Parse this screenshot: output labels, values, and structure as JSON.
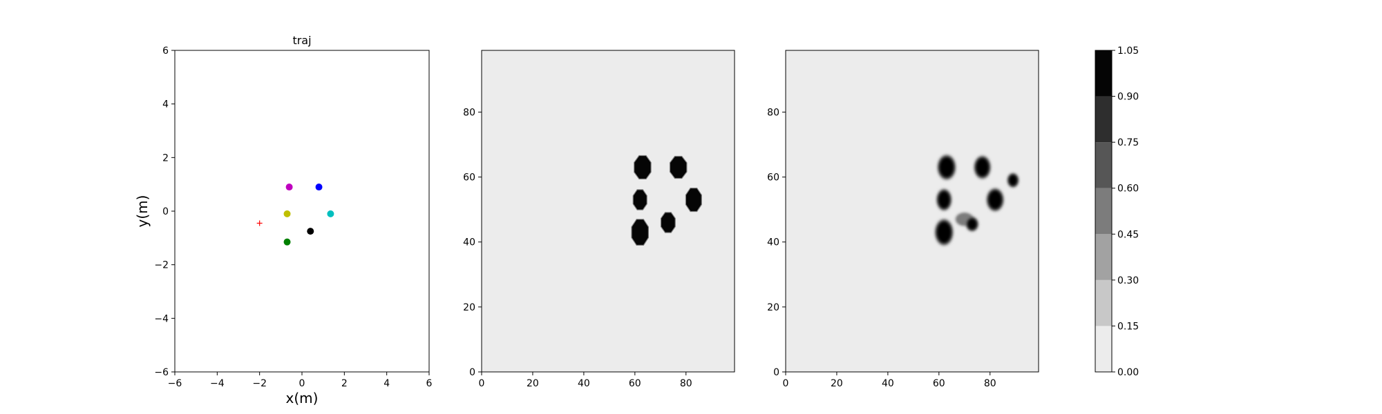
{
  "chart_data": [
    {
      "type": "scatter",
      "title": "traj",
      "xlabel": "x(m)",
      "ylabel": "y(m)",
      "xlim": [
        -6,
        6
      ],
      "ylim": [
        -6,
        6
      ],
      "xticks": [
        "−6",
        "−4",
        "−2",
        "0",
        "2",
        "4",
        "6"
      ],
      "yticks": [
        "−6",
        "−4",
        "−2",
        "0",
        "2",
        "4",
        "6"
      ],
      "grid": false,
      "points": [
        {
          "x": -0.6,
          "y": 0.9,
          "color": "#bf00bf",
          "marker": "dot"
        },
        {
          "x": 0.8,
          "y": 0.9,
          "color": "#0000ff",
          "marker": "dot"
        },
        {
          "x": -0.7,
          "y": -0.1,
          "color": "#bfbf00",
          "marker": "dot"
        },
        {
          "x": 1.35,
          "y": -0.1,
          "color": "#00bfbf",
          "marker": "dot"
        },
        {
          "x": 0.4,
          "y": -0.75,
          "color": "#000000",
          "marker": "dot"
        },
        {
          "x": -0.7,
          "y": -1.15,
          "color": "#008000",
          "marker": "dot"
        },
        {
          "x": -2.0,
          "y": -0.45,
          "color": "#ff0000",
          "marker": "plus"
        }
      ]
    },
    {
      "type": "heatmap",
      "title": "",
      "xlim": [
        0,
        99
      ],
      "ylim": [
        0,
        99
      ],
      "xticks": [
        "0",
        "20",
        "40",
        "60",
        "80"
      ],
      "yticks": [
        "0",
        "20",
        "40",
        "60",
        "80"
      ],
      "background_value": 0.05,
      "blobs": [
        {
          "cx": 63,
          "cy": 63,
          "rx": 3.3,
          "ry": 3.6,
          "value": 1.0,
          "soft": false
        },
        {
          "cx": 77,
          "cy": 63,
          "rx": 3.3,
          "ry": 3.4,
          "value": 1.0,
          "soft": false
        },
        {
          "cx": 62,
          "cy": 53,
          "rx": 2.7,
          "ry": 3.1,
          "value": 1.0,
          "soft": false
        },
        {
          "cx": 83,
          "cy": 53,
          "rx": 3.1,
          "ry": 3.6,
          "value": 1.0,
          "soft": false
        },
        {
          "cx": 73,
          "cy": 46,
          "rx": 2.8,
          "ry": 3.1,
          "value": 1.0,
          "soft": false
        },
        {
          "cx": 62,
          "cy": 43,
          "rx": 3.3,
          "ry": 4.0,
          "value": 1.0,
          "soft": false
        }
      ]
    },
    {
      "type": "heatmap",
      "title": "",
      "xlim": [
        0,
        99
      ],
      "ylim": [
        0,
        99
      ],
      "xticks": [
        "0",
        "20",
        "40",
        "60",
        "80"
      ],
      "yticks": [
        "0",
        "20",
        "40",
        "60",
        "80"
      ],
      "background_value": 0.05,
      "blobs": [
        {
          "cx": 63,
          "cy": 63,
          "rx": 3.3,
          "ry": 3.6,
          "value": 1.0,
          "soft": true
        },
        {
          "cx": 77,
          "cy": 63,
          "rx": 3.0,
          "ry": 3.3,
          "value": 1.0,
          "soft": true
        },
        {
          "cx": 89,
          "cy": 59,
          "rx": 2.0,
          "ry": 2.0,
          "value": 0.9,
          "soft": true
        },
        {
          "cx": 62,
          "cy": 53,
          "rx": 2.7,
          "ry": 3.1,
          "value": 1.0,
          "soft": true
        },
        {
          "cx": 82,
          "cy": 53,
          "rx": 3.1,
          "ry": 3.3,
          "value": 1.0,
          "soft": true
        },
        {
          "cx": 70,
          "cy": 47,
          "rx": 3.2,
          "ry": 1.8,
          "value": 0.55,
          "soft": true
        },
        {
          "cx": 73,
          "cy": 45.5,
          "rx": 2.2,
          "ry": 2.0,
          "value": 0.95,
          "soft": true
        },
        {
          "cx": 62,
          "cy": 43,
          "rx": 3.3,
          "ry": 3.8,
          "value": 1.0,
          "soft": true
        }
      ]
    }
  ],
  "colorbar": {
    "levels": [
      0.0,
      0.15,
      0.3,
      0.45,
      0.6,
      0.75,
      0.9,
      1.05
    ],
    "tick_labels": [
      "0.00",
      "0.15",
      "0.30",
      "0.45",
      "0.60",
      "0.75",
      "0.90",
      "1.05"
    ],
    "colors": [
      "#ececec",
      "#c8c8c8",
      "#a2a2a2",
      "#7c7c7c",
      "#565656",
      "#2e2e2e",
      "#050505"
    ]
  }
}
